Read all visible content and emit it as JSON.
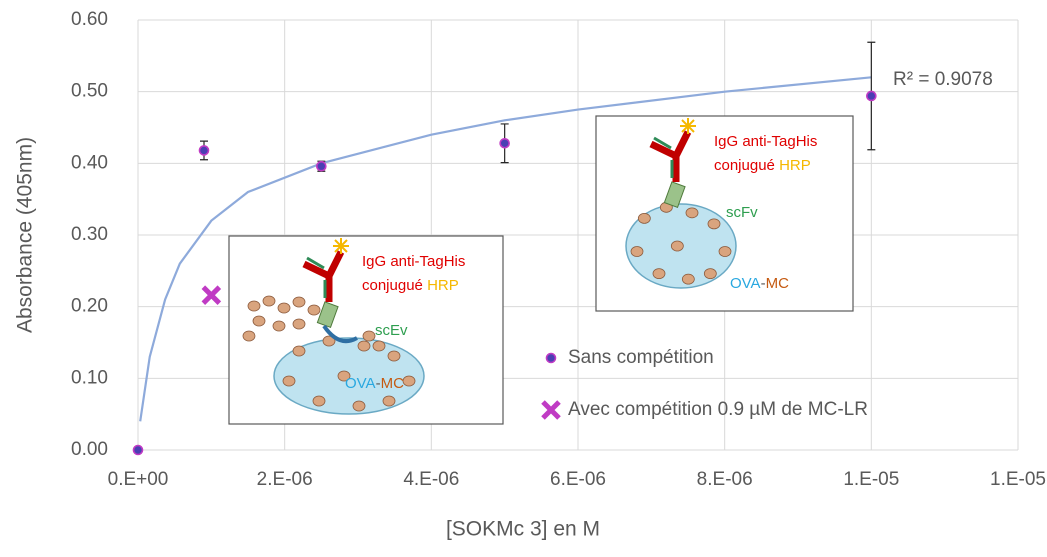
{
  "chart_data": {
    "type": "scatter",
    "x_label": "[SOKMc 3] en M",
    "y_label": "Absorbance (405nm)",
    "xlim": [
      0,
      1.2e-05
    ],
    "ylim": [
      0,
      0.6
    ],
    "xticks": [
      {
        "value": 0,
        "label": "0.E+00"
      },
      {
        "value": 2e-06,
        "label": "2.E-06"
      },
      {
        "value": 4e-06,
        "label": "4.E-06"
      },
      {
        "value": 6e-06,
        "label": "6.E-06"
      },
      {
        "value": 8e-06,
        "label": "8.E-06"
      },
      {
        "value": 1e-05,
        "label": "1.E-05"
      },
      {
        "value": 1.2e-05,
        "label": "1.E-05"
      }
    ],
    "yticks": [
      {
        "value": 0,
        "label": "0.00"
      },
      {
        "value": 0.1,
        "label": "0.10"
      },
      {
        "value": 0.2,
        "label": "0.20"
      },
      {
        "value": 0.3,
        "label": "0.30"
      },
      {
        "value": 0.4,
        "label": "0.40"
      },
      {
        "value": 0.5,
        "label": "0.50"
      },
      {
        "value": 0.6,
        "label": "0.60"
      }
    ],
    "grid": true,
    "series": [
      {
        "name": "Sans compétition",
        "color": "#4b3fb3",
        "edge": "#c03bc4",
        "marker": "circle",
        "x": [
          0,
          9e-07,
          2.5e-06,
          5e-06,
          1e-05
        ],
        "values": [
          0,
          0.418,
          0.396,
          0.428,
          0.494
        ],
        "errors": [
          0,
          0.013,
          0.007,
          0.027,
          0.075
        ]
      },
      {
        "name": "Avec compétition 0.9 µM de MC-LR",
        "color": "#c03bc4",
        "marker": "cross",
        "x": [
          1e-06
        ],
        "values": [
          0.216
        ]
      }
    ],
    "trendline": {
      "label": "R² = 0.9078",
      "color": "#8eaadb",
      "x": [
        3e-08,
        1.6e-07,
        3.7e-07,
        5.7e-07,
        1e-06,
        1.5e-06,
        2.5e-06,
        4e-06,
        5e-06,
        6e-06,
        8e-06,
        1e-05
      ],
      "values": [
        0.04,
        0.13,
        0.21,
        0.26,
        0.32,
        0.36,
        0.4,
        0.44,
        0.46,
        0.475,
        0.5,
        0.52
      ]
    },
    "insets": [
      {
        "antibody": "IgG anti-TagHis",
        "conjugate": "conjugué",
        "enzyme": "HRP",
        "fragment": "scEv",
        "antigen": "OVA",
        "separator": "-",
        "toxin": "MC"
      },
      {
        "antibody": "IgG anti-TagHis",
        "conjugate": "conjugué",
        "enzyme": "HRP",
        "fragment": "scFv",
        "antigen": "OVA",
        "separator": "-",
        "toxin": "MC"
      }
    ]
  }
}
